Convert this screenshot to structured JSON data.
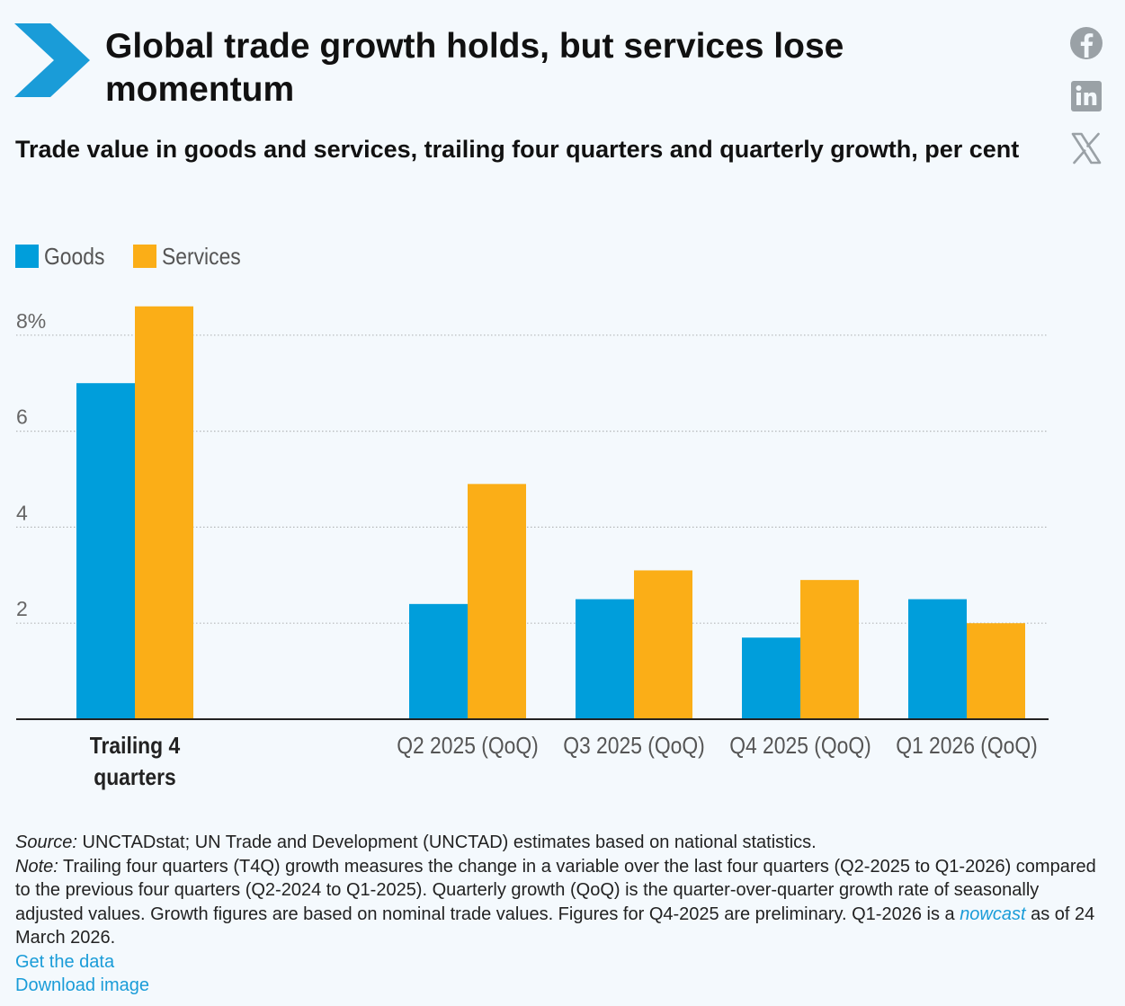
{
  "header": {
    "title": "Global trade growth holds, but services lose momentum",
    "subtitle": "Trade value in goods and services, trailing four quarters and quarterly growth, per cent",
    "logo_icon": "chevron-arrow-logo",
    "accent_color": "#1a9cd8"
  },
  "social": {
    "facebook_icon": "facebook-icon",
    "linkedin_icon": "linkedin-icon",
    "x_icon": "x-icon"
  },
  "legend": [
    {
      "label": "Goods",
      "color": "#009edb"
    },
    {
      "label": "Services",
      "color": "#fbae17"
    }
  ],
  "chart_data": {
    "type": "bar",
    "categories": [
      "Trailing 4 quarters",
      "",
      "Q2 2025 (QoQ)",
      "Q3 2025 (QoQ)",
      "Q4 2025 (QoQ)",
      "Q1 2026 (QoQ)"
    ],
    "category_lines": [
      [
        "Trailing 4",
        "quarters"
      ],
      [],
      [
        "Q2 2025 (QoQ)"
      ],
      [
        "Q3 2025 (QoQ)"
      ],
      [
        "Q4 2025 (QoQ)"
      ],
      [
        "Q1 2026 (QoQ)"
      ]
    ],
    "bold_categories": [
      0
    ],
    "series": [
      {
        "name": "Goods",
        "color": "#009edb",
        "values": [
          7.0,
          null,
          2.4,
          2.5,
          1.7,
          2.5
        ]
      },
      {
        "name": "Services",
        "color": "#fbae17",
        "values": [
          8.6,
          null,
          4.9,
          3.1,
          2.9,
          2.0
        ]
      }
    ],
    "ylim": [
      0,
      8.4
    ],
    "yticks": [
      2,
      4,
      6,
      8
    ],
    "ytick_labels": [
      "2",
      "4",
      "6",
      "8%"
    ],
    "grid": true,
    "legend_position": "top-left"
  },
  "notes": {
    "source_label": "Source:",
    "source_text": " UNCTADstat; UN Trade and Development (UNCTAD) estimates based on national statistics.",
    "note_label": "Note:",
    "note_text": " Trailing four quarters (T4Q) growth measures the change in a variable over the last four quarters (Q2-2025 to Q1-2026) compared to the previous four quarters (Q2-2024 to Q1-2025). Quarterly growth (QoQ) is the quarter-over-quarter growth rate of seasonally adjusted values. Growth figures are based on nominal trade values. Figures for Q4-2025 are preliminary. Q1-2026 is a ",
    "nowcast_link": "nowcast",
    "note_tail": " as of 24 March 2026.",
    "get_data_link": "Get the data",
    "download_link": "Download image"
  }
}
